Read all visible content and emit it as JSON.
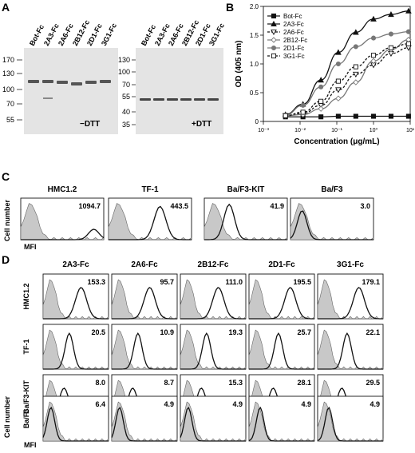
{
  "panel_labels": [
    "A",
    "B",
    "C",
    "D"
  ],
  "panel_a": {
    "lanes": [
      "Bot-Fc",
      "2A3-Fc",
      "2A6-Fc",
      "2B12-Fc",
      "2D1-Fc",
      "3G1-Fc"
    ],
    "markers": [
      "170",
      "130",
      "100",
      "70",
      "55"
    ],
    "markers_right": [
      "130",
      "100",
      "70",
      "55",
      "40",
      "35"
    ],
    "label_left": "−DTT",
    "label_right": "+DTT",
    "colors": {
      "gel_bg": "#e4e4e4",
      "band": "#555555"
    }
  },
  "panel_c": {
    "headers": [
      "HMC1.2",
      "TF-1",
      "Ba/F3-KIT",
      "Ba/F3"
    ],
    "values": [
      "1094.7",
      "443.5",
      "41.9",
      "3.0"
    ],
    "y_label": "Cell number",
    "x_label": "MFI",
    "colors": {
      "filled": "#c8c8c8",
      "line": "#111111"
    }
  },
  "panel_d": {
    "columns": [
      "2A3-Fc",
      "2A6-Fc",
      "2B12-Fc",
      "2D1-Fc",
      "3G1-Fc"
    ],
    "rows": [
      "HMC1.2",
      "TF-1",
      "Ba/F3-KIT",
      "Ba/F3"
    ],
    "values": [
      [
        "153.3",
        "95.7",
        "111.0",
        "195.5",
        "179.1"
      ],
      [
        "20.5",
        "10.9",
        "19.3",
        "25.7",
        "22.1"
      ],
      [
        "8.0",
        "8.7",
        "15.3",
        "28.1",
        "29.5"
      ],
      [
        "6.4",
        "4.9",
        "4.9",
        "4.9",
        "4.9"
      ]
    ],
    "y_label": "Cell number",
    "x_label": "MFI"
  },
  "chart_data": {
    "type": "line",
    "title": "",
    "xlabel": "Concentration (μg/mL)",
    "ylabel": "OD (405 nm)",
    "xscale": "log",
    "xlim": [
      0.001,
      10
    ],
    "ylim": [
      0,
      2.0
    ],
    "x_ticks": [
      "10⁻³",
      "10⁻²",
      "10⁻¹",
      "10⁰",
      "10¹"
    ],
    "y_ticks": [
      "0",
      "0.5",
      "1.0",
      "1.5",
      "2.0"
    ],
    "x": [
      0.004,
      0.012,
      0.037,
      0.11,
      0.33,
      1.0,
      3.0,
      9.0
    ],
    "legend_position": "top-left-inside",
    "series": [
      {
        "name": "Bot-Fc",
        "marker": "square-filled",
        "dashed": false,
        "color": "#111111",
        "values": [
          0.08,
          0.08,
          0.08,
          0.09,
          0.09,
          0.09,
          0.09,
          0.09
        ]
      },
      {
        "name": "2A3-Fc",
        "marker": "triangle-up-filled",
        "dashed": false,
        "color": "#111111",
        "values": [
          0.12,
          0.3,
          0.72,
          1.2,
          1.55,
          1.78,
          1.86,
          1.92
        ]
      },
      {
        "name": "2A6-Fc",
        "marker": "triangle-down-open",
        "dashed": true,
        "color": "#111111",
        "values": [
          0.1,
          0.14,
          0.28,
          0.55,
          0.82,
          0.98,
          1.18,
          1.28
        ]
      },
      {
        "name": "2B12-Fc",
        "marker": "diamond-open",
        "dashed": false,
        "color": "#777777",
        "values": [
          0.1,
          0.12,
          0.22,
          0.4,
          0.68,
          1.05,
          1.25,
          1.42
        ]
      },
      {
        "name": "2D1-Fc",
        "marker": "circle-filled",
        "dashed": false,
        "color": "#777777",
        "values": [
          0.11,
          0.28,
          0.6,
          1.0,
          1.3,
          1.45,
          1.52,
          1.56
        ]
      },
      {
        "name": "3G1-Fc",
        "marker": "square-open",
        "dashed": true,
        "color": "#111111",
        "values": [
          0.1,
          0.16,
          0.35,
          0.7,
          0.95,
          1.15,
          1.28,
          1.35
        ]
      }
    ]
  }
}
